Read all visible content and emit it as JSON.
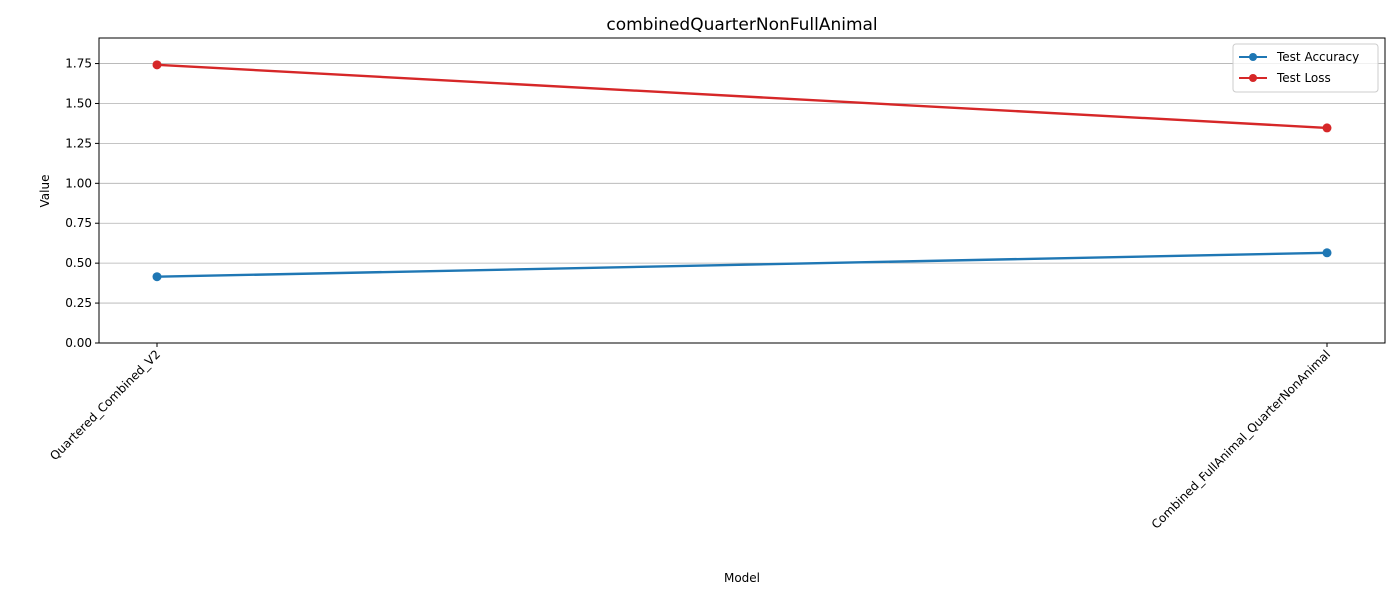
{
  "chart_data": {
    "type": "line",
    "title": "combinedQuarterNonFullAnimal",
    "xlabel": "Model",
    "ylabel": "Value",
    "categories": [
      "Quartered_Combined_V2",
      "Combined_FullAnimal_QuarterNonAnimal"
    ],
    "ylim": [
      0,
      1.91
    ],
    "yticks": [
      0.0,
      0.25,
      0.5,
      0.75,
      1.0,
      1.25,
      1.5,
      1.75
    ],
    "ytick_labels": [
      "0.00",
      "0.25",
      "0.50",
      "0.75",
      "1.00",
      "1.25",
      "1.50",
      "1.75"
    ],
    "grid": "y",
    "legend_position": "top-right",
    "series": [
      {
        "name": "Test Accuracy",
        "color": "#1f77b4",
        "values": [
          0.415,
          0.565
        ]
      },
      {
        "name": "Test Loss",
        "color": "#d62728",
        "values": [
          1.742,
          1.347
        ]
      }
    ]
  }
}
